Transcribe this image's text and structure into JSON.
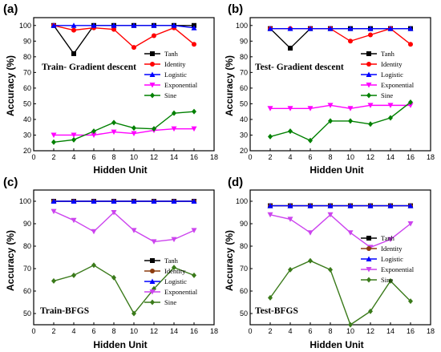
{
  "chart_data": [
    {
      "letter": "(a)",
      "type": "line",
      "title": "Train- Gradient descent",
      "xlabel": "Hidden Unit",
      "ylabel": "Accuracy (%)",
      "xlim": [
        0,
        18
      ],
      "ylim": [
        20,
        105
      ],
      "xticks": [
        0,
        2,
        4,
        6,
        8,
        10,
        12,
        14,
        16,
        18
      ],
      "yticks": [
        20,
        30,
        40,
        50,
        60,
        70,
        80,
        90,
        100
      ],
      "x": [
        2,
        4,
        6,
        8,
        10,
        12,
        14,
        16
      ],
      "legend_position": "right-middle",
      "series": [
        {
          "name": "Tanh",
          "color": "#000000",
          "marker": "square",
          "values": [
            100,
            82,
            100,
            100,
            100,
            100,
            100,
            100
          ]
        },
        {
          "name": "Identity",
          "color": "#ff0000",
          "marker": "circle",
          "values": [
            100,
            97,
            98.5,
            97.5,
            86,
            93.5,
            98.5,
            88
          ]
        },
        {
          "name": "Logistic",
          "color": "#0000ff",
          "marker": "triangle-up",
          "values": [
            100,
            100,
            100,
            100,
            100,
            100,
            100,
            98.5
          ]
        },
        {
          "name": "Exponential",
          "color": "#ff00ff",
          "marker": "triangle-down",
          "values": [
            30,
            30,
            30,
            32,
            31,
            33,
            34,
            34
          ]
        },
        {
          "name": "Sine",
          "color": "#008000",
          "marker": "diamond",
          "values": [
            25.5,
            27,
            32.5,
            38,
            34.5,
            34,
            44,
            45
          ]
        }
      ]
    },
    {
      "letter": "(b)",
      "type": "line",
      "title": "Test- Gradient descent",
      "xlabel": "Hidden Unit",
      "ylabel": "Accuracy (%)",
      "xlim": [
        0,
        18
      ],
      "ylim": [
        20,
        105
      ],
      "xticks": [
        0,
        2,
        4,
        6,
        8,
        10,
        12,
        14,
        16,
        18
      ],
      "yticks": [
        20,
        30,
        40,
        50,
        60,
        70,
        80,
        90,
        100
      ],
      "x": [
        2,
        4,
        6,
        8,
        10,
        12,
        14,
        16
      ],
      "legend_position": "right-middle",
      "series": [
        {
          "name": "Tanh",
          "color": "#000000",
          "marker": "square",
          "values": [
            98,
            85.5,
            98,
            98,
            98,
            98,
            98,
            98
          ]
        },
        {
          "name": "Identity",
          "color": "#ff0000",
          "marker": "circle",
          "values": [
            98,
            98,
            98,
            98,
            90,
            94,
            98,
            88
          ]
        },
        {
          "name": "Logistic",
          "color": "#0000ff",
          "marker": "triangle-up",
          "values": [
            98,
            98,
            98,
            98,
            98,
            98,
            98,
            98
          ]
        },
        {
          "name": "Exponential",
          "color": "#ff00ff",
          "marker": "triangle-down",
          "values": [
            47,
            47,
            47,
            49,
            47,
            49,
            49,
            49
          ]
        },
        {
          "name": "Sine",
          "color": "#008000",
          "marker": "diamond",
          "values": [
            29,
            32.5,
            26.5,
            39,
            39,
            37,
            41,
            51
          ]
        }
      ]
    },
    {
      "letter": "(c)",
      "type": "line",
      "title": "Train-BFGS",
      "xlabel": "Hidden Unit",
      "ylabel": "Accuracy (%)",
      "xlim": [
        0,
        18
      ],
      "ylim": [
        45,
        105
      ],
      "xticks": [
        0,
        2,
        4,
        6,
        8,
        10,
        12,
        14,
        16,
        18
      ],
      "yticks": [
        50,
        60,
        70,
        80,
        90,
        100
      ],
      "x": [
        2,
        4,
        6,
        8,
        10,
        12,
        14,
        16
      ],
      "legend_position": "right-middle",
      "series": [
        {
          "name": "Tanh",
          "color": "#000000",
          "marker": "square",
          "values": [
            100,
            100,
            100,
            100,
            100,
            100,
            100,
            100
          ]
        },
        {
          "name": "Identity",
          "color": "#8b3a0f",
          "marker": "circle",
          "values": [
            100,
            100,
            100,
            100,
            100,
            100,
            100,
            100
          ]
        },
        {
          "name": "Logistic",
          "color": "#0000ff",
          "marker": "triangle-up",
          "values": [
            100,
            100,
            100,
            100,
            100,
            100,
            100,
            100
          ]
        },
        {
          "name": "Exponential",
          "color": "#cc44ee",
          "marker": "triangle-down",
          "values": [
            95.5,
            91.5,
            86.5,
            95,
            87,
            82,
            83,
            87
          ]
        },
        {
          "name": "Sine",
          "color": "#3a7a1a",
          "marker": "diamond",
          "values": [
            64.5,
            67,
            71.5,
            66,
            50,
            61,
            70.5,
            67
          ]
        }
      ]
    },
    {
      "letter": "(d)",
      "type": "line",
      "title": "Test-BFGS",
      "xlabel": "Hidden Unit",
      "ylabel": "Accuracy (%)",
      "xlim": [
        0,
        18
      ],
      "ylim": [
        45,
        105
      ],
      "xticks": [
        0,
        2,
        4,
        6,
        8,
        10,
        12,
        14,
        16,
        18
      ],
      "yticks": [
        50,
        60,
        70,
        80,
        90,
        100
      ],
      "x": [
        2,
        4,
        6,
        8,
        10,
        12,
        14,
        16
      ],
      "legend_position": "right-middle",
      "series": [
        {
          "name": "Tanh",
          "color": "#000000",
          "marker": "square",
          "values": [
            98,
            98,
            98,
            98,
            98,
            98,
            98,
            98
          ]
        },
        {
          "name": "Identity",
          "color": "#8b3a0f",
          "marker": "circle",
          "values": [
            98,
            98,
            98,
            98,
            98,
            98,
            98,
            98
          ]
        },
        {
          "name": "Logistic",
          "color": "#0000ff",
          "marker": "triangle-up",
          "values": [
            98,
            98,
            98,
            98,
            98,
            98,
            98,
            98
          ]
        },
        {
          "name": "Exponential",
          "color": "#cc44ee",
          "marker": "triangle-down",
          "values": [
            94,
            92,
            86,
            94,
            86,
            79.5,
            83,
            90
          ]
        },
        {
          "name": "Sine",
          "color": "#3a7a1a",
          "marker": "diamond",
          "values": [
            57,
            69.5,
            73.5,
            69.5,
            45,
            51,
            64.5,
            55.5
          ]
        }
      ]
    }
  ]
}
